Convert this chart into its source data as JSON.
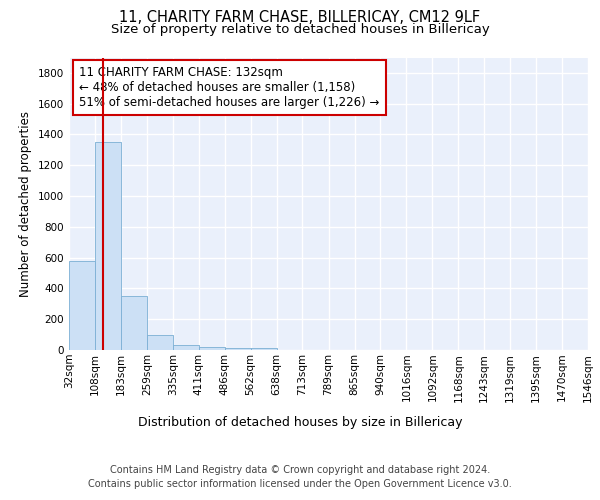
{
  "title1": "11, CHARITY FARM CHASE, BILLERICAY, CM12 9LF",
  "title2": "Size of property relative to detached houses in Billericay",
  "xlabel": "Distribution of detached houses by size in Billericay",
  "ylabel": "Number of detached properties",
  "bin_edges": [
    32,
    108,
    183,
    259,
    335,
    411,
    486,
    562,
    638,
    713,
    789,
    865,
    940,
    1016,
    1092,
    1168,
    1243,
    1319,
    1395,
    1470,
    1546
  ],
  "bar_heights": [
    575,
    1350,
    350,
    95,
    30,
    20,
    15,
    10,
    0,
    0,
    0,
    0,
    0,
    0,
    0,
    0,
    0,
    0,
    0,
    0
  ],
  "bar_color": "#cce0f5",
  "bar_edgecolor": "#7bafd4",
  "vline_x": 132,
  "vline_color": "#cc0000",
  "annotation_line1": "11 CHARITY FARM CHASE: 132sqm",
  "annotation_line2": "← 48% of detached houses are smaller (1,158)",
  "annotation_line3": "51% of semi-detached houses are larger (1,226) →",
  "annotation_box_edgecolor": "#cc0000",
  "annotation_box_facecolor": "#ffffff",
  "ylim": [
    0,
    1900
  ],
  "yticks": [
    0,
    200,
    400,
    600,
    800,
    1000,
    1200,
    1400,
    1600,
    1800
  ],
  "background_color": "#eaf0fb",
  "grid_color": "#ffffff",
  "footer_line1": "Contains HM Land Registry data © Crown copyright and database right 2024.",
  "footer_line2": "Contains public sector information licensed under the Open Government Licence v3.0.",
  "title1_fontsize": 10.5,
  "title2_fontsize": 9.5,
  "xlabel_fontsize": 9,
  "ylabel_fontsize": 8.5,
  "tick_fontsize": 7.5,
  "annotation_fontsize": 8.5,
  "footer_fontsize": 7
}
